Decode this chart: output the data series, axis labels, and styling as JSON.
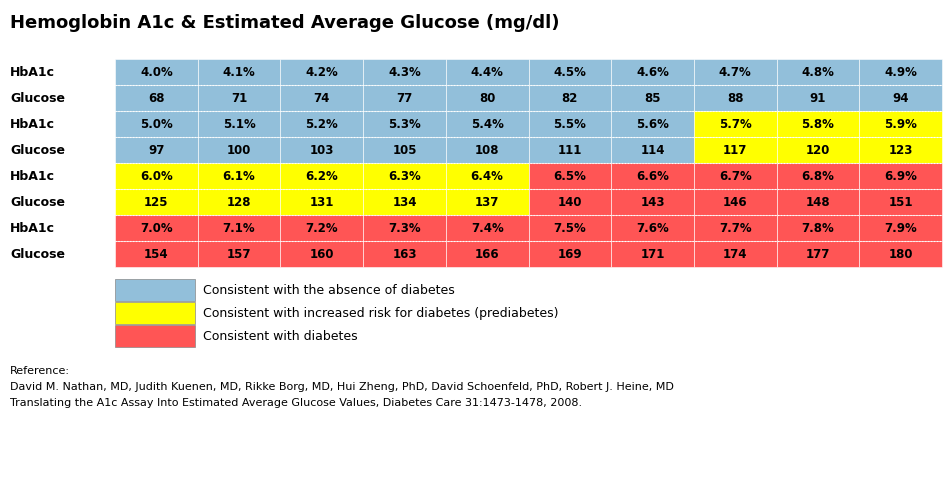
{
  "title": "Hemoglobin A1c & Estimated Average Glucose (mg/dl)",
  "columns": 10,
  "hba1c_row1": [
    "4.0%",
    "4.1%",
    "4.2%",
    "4.3%",
    "4.4%",
    "4.5%",
    "4.6%",
    "4.7%",
    "4.8%",
    "4.9%"
  ],
  "glucose_row1": [
    "68",
    "71",
    "74",
    "77",
    "80",
    "82",
    "85",
    "88",
    "91",
    "94"
  ],
  "hba1c_row2": [
    "5.0%",
    "5.1%",
    "5.2%",
    "5.3%",
    "5.4%",
    "5.5%",
    "5.6%",
    "5.7%",
    "5.8%",
    "5.9%"
  ],
  "glucose_row2": [
    "97",
    "100",
    "103",
    "105",
    "108",
    "111",
    "114",
    "117",
    "120",
    "123"
  ],
  "hba1c_row3": [
    "6.0%",
    "6.1%",
    "6.2%",
    "6.3%",
    "6.4%",
    "6.5%",
    "6.6%",
    "6.7%",
    "6.8%",
    "6.9%"
  ],
  "glucose_row3": [
    "125",
    "128",
    "131",
    "134",
    "137",
    "140",
    "143",
    "146",
    "148",
    "151"
  ],
  "hba1c_row4": [
    "7.0%",
    "7.1%",
    "7.2%",
    "7.3%",
    "7.4%",
    "7.5%",
    "7.6%",
    "7.7%",
    "7.8%",
    "7.9%"
  ],
  "glucose_row4": [
    "154",
    "157",
    "160",
    "163",
    "166",
    "169",
    "171",
    "174",
    "177",
    "180"
  ],
  "row_labels": [
    "HbA1c",
    "Glucose",
    "HbA1c",
    "Glucose",
    "HbA1c",
    "Glucose",
    "HbA1c",
    "Glucose"
  ],
  "color_blue": "#92BFDA",
  "color_yellow": "#FFFF00",
  "color_red": "#FF5555",
  "legend_blue_label": "Consistent with the absence of diabetes",
  "legend_yellow_label": "Consistent with increased risk for diabetes (prediabetes)",
  "legend_red_label": "Consistent with diabetes",
  "reference_line1": "Reference:",
  "reference_line2": "David M. Nathan, MD, Judith Kuenen, MD, Rikke Borg, MD, Hui Zheng, PhD, David Schoenfeld, PhD, Robert J. Heine, MD",
  "reference_line3": "Translating the A1c Assay Into Estimated Average Glucose Values, Diabetes Care 31:1473-1478, 2008.",
  "cell_colors_row1_hba1c": [
    "blue",
    "blue",
    "blue",
    "blue",
    "blue",
    "blue",
    "blue",
    "blue",
    "blue",
    "blue"
  ],
  "cell_colors_row1_glucose": [
    "blue",
    "blue",
    "blue",
    "blue",
    "blue",
    "blue",
    "blue",
    "blue",
    "blue",
    "blue"
  ],
  "cell_colors_row2_hba1c": [
    "blue",
    "blue",
    "blue",
    "blue",
    "blue",
    "blue",
    "blue",
    "yellow",
    "yellow",
    "yellow"
  ],
  "cell_colors_row2_glucose": [
    "blue",
    "blue",
    "blue",
    "blue",
    "blue",
    "blue",
    "blue",
    "yellow",
    "yellow",
    "yellow"
  ],
  "cell_colors_row3_hba1c": [
    "yellow",
    "yellow",
    "yellow",
    "yellow",
    "yellow",
    "red",
    "red",
    "red",
    "red",
    "red"
  ],
  "cell_colors_row3_glucose": [
    "yellow",
    "yellow",
    "yellow",
    "yellow",
    "yellow",
    "red",
    "red",
    "red",
    "red",
    "red"
  ],
  "cell_colors_row4_hba1c": [
    "red",
    "red",
    "red",
    "red",
    "red",
    "red",
    "red",
    "red",
    "red",
    "red"
  ],
  "cell_colors_row4_glucose": [
    "red",
    "red",
    "red",
    "red",
    "red",
    "red",
    "red",
    "red",
    "red",
    "red"
  ],
  "fig_width": 9.49,
  "fig_height": 5.04,
  "dpi": 100
}
